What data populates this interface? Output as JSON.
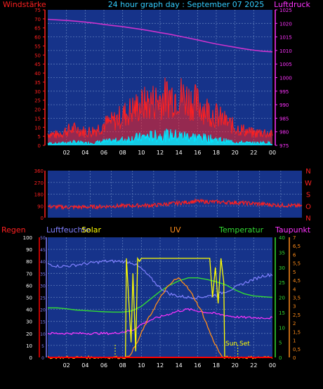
{
  "header": {
    "left_label": "Windstärke",
    "title": "24 hour graph day : September 07 2025",
    "right_label": "Luftdruck"
  },
  "colors": {
    "background": "#000000",
    "panel": "#16338a",
    "grid": "#5a78b8",
    "wind": "#ff2020",
    "gust": "#00e8ff",
    "pressure": "#cc33cc",
    "direction": "#ff2020",
    "rain": "#ff0000",
    "humidity": "#8080ff",
    "solar": "#ffff00",
    "uv": "#ff8c1a",
    "temperature": "#33dd33",
    "dewpoint": "#ff33ff",
    "pressure_axis": "#ff33ff"
  },
  "chart_data": [
    {
      "id": "wind-pressure",
      "type": "line",
      "left_ticks": [
        "75",
        "70",
        "65",
        "60",
        "55",
        "50",
        "45",
        "40",
        "35",
        "30",
        "25",
        "20",
        "15",
        "10",
        "5",
        "0"
      ],
      "right_ticks": [
        "1025",
        "1020",
        "1015",
        "1010",
        "1005",
        "1000",
        "995",
        "990",
        "985",
        "980",
        "975"
      ],
      "x_ticks": [
        "02",
        "04",
        "06",
        "08",
        "10",
        "12",
        "14",
        "16",
        "18",
        "20",
        "22",
        "00"
      ],
      "left_range": [
        0,
        75
      ],
      "right_range": [
        975,
        1025
      ],
      "series": [
        {
          "key": "pressure",
          "x": [
            0,
            1,
            2,
            3,
            4,
            5,
            6,
            7,
            8,
            9,
            10,
            11,
            12,
            13,
            14,
            15,
            16,
            17,
            18,
            19,
            20,
            21,
            22,
            23,
            24
          ],
          "values": [
            1021.5,
            1021.3,
            1021.1,
            1020.8,
            1020.5,
            1020.1,
            1019.6,
            1019.2,
            1018.8,
            1018.3,
            1017.8,
            1017.2,
            1016.6,
            1016.0,
            1015.3,
            1014.6,
            1013.9,
            1013.1,
            1012.4,
            1011.8,
            1011.2,
            1010.6,
            1010.1,
            1009.7,
            1009.5
          ]
        },
        {
          "key": "wind_avg",
          "x": [
            0,
            1,
            2,
            3,
            4,
            5,
            6,
            7,
            8,
            9,
            10,
            11,
            12,
            13,
            14,
            15,
            16,
            17,
            18,
            19,
            20,
            21,
            22,
            23,
            24
          ],
          "values": [
            4,
            3,
            5,
            6,
            4,
            5,
            7,
            8,
            10,
            13,
            15,
            17,
            18,
            19,
            18,
            17,
            15,
            13,
            11,
            8,
            6,
            5,
            4,
            5,
            4
          ]
        },
        {
          "key": "wind_gust",
          "x": [
            0,
            1,
            2,
            3,
            4,
            5,
            6,
            7,
            8,
            9,
            10,
            11,
            12,
            13,
            14,
            15,
            16,
            17,
            18,
            19,
            20,
            21,
            22,
            23,
            24
          ],
          "values": [
            8,
            7,
            10,
            11,
            9,
            10,
            14,
            16,
            20,
            24,
            27,
            29,
            31,
            33,
            34,
            31,
            28,
            24,
            20,
            16,
            12,
            10,
            8,
            9,
            7
          ]
        }
      ]
    },
    {
      "id": "wind-direction",
      "type": "scatter",
      "left_ticks": [
        "360",
        "270",
        "180",
        "90",
        "0"
      ],
      "right_ticks": [
        "N",
        "W",
        "S",
        "O",
        "N"
      ],
      "range": [
        0,
        360
      ],
      "series": [
        {
          "key": "direction",
          "x": [
            0,
            2,
            4,
            6,
            8,
            10,
            12,
            14,
            16,
            18,
            20,
            22,
            24
          ],
          "values": [
            85,
            80,
            82,
            88,
            92,
            95,
            110,
            125,
            120,
            115,
            105,
            95,
            90
          ]
        }
      ]
    },
    {
      "id": "temp-humidity-solar",
      "type": "line",
      "labels": {
        "rain": "Regen",
        "humidity": "Luftfeuchte",
        "solar": "Solar",
        "uv": "UV",
        "temperature": "Temperatur",
        "dewpoint": "Taupunkt"
      },
      "rain_ticks": [
        "100",
        "90",
        "80",
        "70",
        "60",
        "50",
        "40",
        "30",
        "20",
        "10",
        "0"
      ],
      "humidity_ticks": [
        "50",
        "45",
        "40",
        "35",
        "30",
        "25",
        "20",
        "15",
        "10",
        "5",
        "0"
      ],
      "temperature_ticks": [
        "40",
        "35",
        "30",
        "25",
        "20",
        "15",
        "10",
        "5",
        "0"
      ],
      "dewpoint_ticks": [
        "7",
        "6,5",
        "6",
        "5,5",
        "5",
        "4,5",
        "4",
        "3,5",
        "3",
        "2,5",
        "2",
        "1,5",
        "1",
        "0,5",
        "0"
      ],
      "x_ticks": [
        "02",
        "04",
        "06",
        "08",
        "10",
        "12",
        "14",
        "16",
        "18",
        "20",
        "22",
        "00"
      ],
      "sunset_label": "Sun Set",
      "sunrise_hour": 7.2,
      "sunset_hour": 20.3,
      "series": [
        {
          "key": "humidity",
          "x": [
            0,
            1,
            2,
            3,
            4,
            5,
            6,
            7,
            8,
            9,
            10,
            11,
            12,
            13,
            14,
            15,
            16,
            17,
            18,
            19,
            20,
            21,
            22,
            23,
            24
          ],
          "values": [
            78,
            76,
            76,
            77,
            78,
            79,
            80,
            80,
            80,
            79,
            74,
            66,
            58,
            53,
            51,
            50,
            50,
            51,
            52,
            55,
            58,
            62,
            65,
            68,
            69
          ],
          "range": [
            0,
            100
          ]
        },
        {
          "key": "temperature",
          "x": [
            0,
            1,
            2,
            3,
            4,
            5,
            6,
            7,
            8,
            9,
            10,
            11,
            12,
            13,
            14,
            15,
            16,
            17,
            18,
            19,
            20,
            21,
            22,
            23,
            24
          ],
          "values": [
            16.5,
            16.5,
            16.2,
            15.8,
            15.6,
            15.4,
            15.2,
            15.1,
            15.1,
            15.5,
            17.0,
            19.5,
            22.0,
            24.0,
            25.5,
            26.5,
            26.5,
            26.0,
            25.2,
            24.2,
            22.5,
            21.2,
            20.5,
            20.2,
            20.0
          ],
          "range": [
            0,
            40
          ]
        },
        {
          "key": "dewpoint",
          "x": [
            0,
            1,
            2,
            3,
            4,
            5,
            6,
            7,
            8,
            9,
            10,
            11,
            12,
            13,
            14,
            15,
            16,
            17,
            18,
            19,
            20,
            21,
            22,
            23,
            24
          ],
          "values": [
            8,
            8,
            8,
            8,
            8,
            8,
            8,
            8,
            8.5,
            9,
            11,
            12.5,
            13.5,
            14.5,
            15.5,
            16,
            15.5,
            15,
            14.5,
            14,
            13.5,
            13.3,
            13.2,
            13.2,
            13.2
          ],
          "range": [
            0,
            40
          ]
        },
        {
          "key": "solar",
          "x": [
            0,
            8.3,
            8.4,
            8.6,
            8.9,
            9.1,
            9.4,
            9.6,
            9.8,
            10.0,
            17.3,
            17.6,
            17.9,
            18.2,
            18.5,
            18.8,
            18.9,
            24
          ],
          "values": [
            0,
            0,
            33,
            22,
            5,
            28,
            2,
            33,
            32,
            33,
            33,
            20,
            30,
            18,
            33,
            25,
            0,
            0
          ],
          "range": [
            0,
            40
          ]
        },
        {
          "key": "uv",
          "x": [
            0,
            8.6,
            9.5,
            10.5,
            11.5,
            12.5,
            13.5,
            14.0,
            14.5,
            15.5,
            16.5,
            17.5,
            18.6,
            24
          ],
          "values": [
            0,
            0,
            0.8,
            2.0,
            3.0,
            3.9,
            4.5,
            4.6,
            4.4,
            3.6,
            2.6,
            1.2,
            0,
            0
          ],
          "range": [
            0,
            7
          ]
        }
      ]
    }
  ]
}
